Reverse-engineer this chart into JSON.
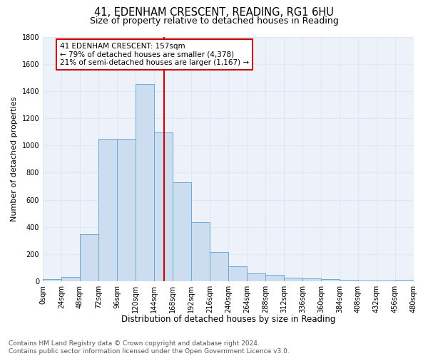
{
  "title": "41, EDENHAM CRESCENT, READING, RG1 6HU",
  "subtitle": "Size of property relative to detached houses in Reading",
  "xlabel": "Distribution of detached houses by size in Reading",
  "ylabel": "Number of detached properties",
  "bins": [
    0,
    24,
    48,
    72,
    96,
    120,
    144,
    168,
    192,
    216,
    240,
    264,
    288,
    312,
    336,
    360,
    384,
    408,
    432,
    456,
    480
  ],
  "counts": [
    15,
    30,
    345,
    1050,
    1050,
    1450,
    1095,
    730,
    435,
    215,
    110,
    60,
    50,
    25,
    20,
    15,
    10,
    5,
    5,
    10
  ],
  "bar_color": "#ccddf0",
  "bar_edge_color": "#6aaad4",
  "red_line_x": 157,
  "annotation_text": "41 EDENHAM CRESCENT: 157sqm\n← 79% of detached houses are smaller (4,378)\n21% of semi-detached houses are larger (1,167) →",
  "annotation_box_color": "#ffffff",
  "annotation_box_edge_color": "#cc0000",
  "ylim": [
    0,
    1800
  ],
  "yticks": [
    0,
    200,
    400,
    600,
    800,
    1000,
    1200,
    1400,
    1600,
    1800
  ],
  "xtick_labels": [
    "0sqm",
    "24sqm",
    "48sqm",
    "72sqm",
    "96sqm",
    "120sqm",
    "144sqm",
    "168sqm",
    "192sqm",
    "216sqm",
    "240sqm",
    "264sqm",
    "288sqm",
    "312sqm",
    "336sqm",
    "360sqm",
    "384sqm",
    "408sqm",
    "432sqm",
    "456sqm",
    "480sqm"
  ],
  "grid_color": "#dde8f5",
  "background_color": "#edf2fa",
  "footer_text": "Contains HM Land Registry data © Crown copyright and database right 2024.\nContains public sector information licensed under the Open Government Licence v3.0.",
  "title_fontsize": 10.5,
  "subtitle_fontsize": 9,
  "xlabel_fontsize": 8.5,
  "ylabel_fontsize": 8,
  "tick_fontsize": 7,
  "footer_fontsize": 6.5,
  "annot_fontsize": 7.5
}
